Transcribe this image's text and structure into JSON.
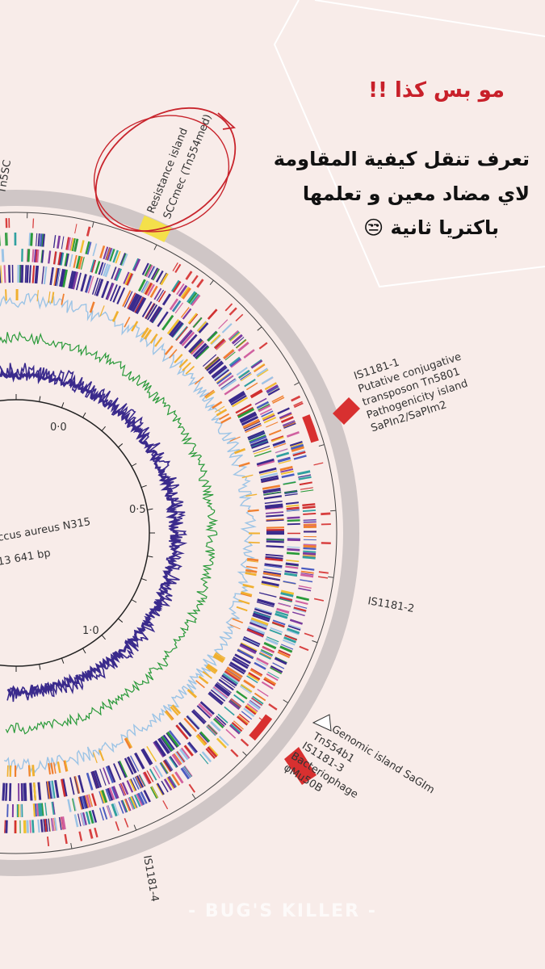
{
  "header": {
    "title": "مو بس كذا !!",
    "lines": [
      "تعرف تنقل كيفية المقاومة",
      "لاي مضاد معين و تعلمها",
      "باكتريا ثانية 😒"
    ]
  },
  "figure": {
    "resistance_island": [
      "Resistance island",
      "SCCmec (Tn554med)"
    ],
    "top_left_label": "Tn5SC",
    "pathogenicity": [
      "IS1181-1",
      "Putative conjugative",
      "transposon Tn5801",
      "Pathogenicity island",
      "SaPIn2/SaPIm2"
    ],
    "is2": "IS1181-2",
    "genomic": [
      "Genomic island SaGIm",
      "Tn554b1",
      "IS1181-3",
      "Bacteriophage",
      "φMu50B"
    ],
    "is4": "IS1181-4",
    "scale": [
      "0·0",
      "0·5",
      "1·0"
    ],
    "genome": [
      "ccus aureus N315",
      "13 641 bp"
    ]
  },
  "watermark": "- BUG'S KILLER -"
}
